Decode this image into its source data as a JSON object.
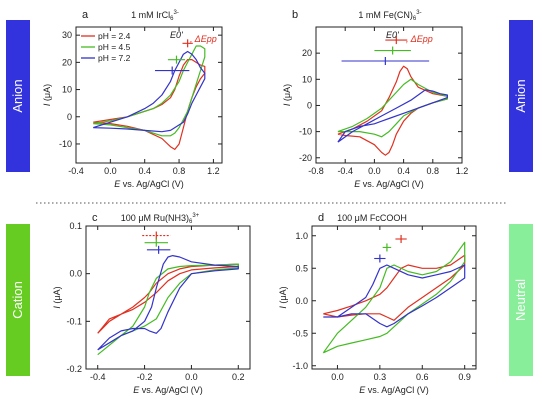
{
  "side_labels": [
    {
      "text": "Anion",
      "color": "#3333dd"
    },
    {
      "text": "Anion",
      "color": "#3333dd"
    },
    {
      "text": "Cation",
      "color": "#66cc22"
    },
    {
      "text": "Neutral",
      "color": "#88ee99"
    }
  ],
  "colors": {
    "pH 2.4": "#e03020",
    "pH 4.5": "#44bb22",
    "pH 7.2": "#3333cc"
  },
  "chart_data": [
    {
      "panel": "a",
      "type": "line",
      "title": "1 mM IrCl6 3-",
      "xlabel": "E vs. Ag/AgCl (V)",
      "ylabel": "I (μA)",
      "xlim": [
        -0.4,
        1.3
      ],
      "ylim": [
        -17,
        33
      ],
      "xticks": [
        "-0.4",
        "0.0",
        "0.4",
        "0.8",
        "1.2"
      ],
      "yticks": [
        "-10",
        "0",
        "10",
        "20",
        "30"
      ],
      "legend": [
        "pH = 2.4",
        "pH = 4.5",
        "pH = 7.2"
      ],
      "legend_title": [
        "E0'",
        "ΔEpp"
      ],
      "series": [
        {
          "name": "pH = 2.4",
          "color": "#e03020",
          "x": [
            -0.2,
            0.0,
            0.2,
            0.4,
            0.5,
            0.6,
            0.7,
            0.75,
            0.8,
            0.85,
            0.9,
            0.95,
            1.0,
            1.05,
            1.1,
            1.1,
            1.05,
            1.0,
            0.95,
            0.9,
            0.85,
            0.8,
            0.75,
            0.7,
            0.6,
            0.4,
            0.2,
            0.0,
            -0.2
          ],
          "y": [
            -2,
            -1,
            0,
            2,
            3,
            4.5,
            7,
            10,
            15,
            19,
            21,
            21,
            20,
            19,
            18.5,
            16,
            14,
            11,
            7,
            2,
            -4,
            -10,
            -12,
            -11,
            -8,
            -5,
            -3.5,
            -2.5,
            -2
          ]
        },
        {
          "name": "pH = 4.5",
          "color": "#44bb22",
          "x": [
            -0.2,
            0.0,
            0.2,
            0.4,
            0.5,
            0.6,
            0.7,
            0.8,
            0.85,
            0.9,
            0.95,
            1.0,
            1.05,
            1.1,
            1.1,
            1.05,
            1.0,
            0.95,
            0.9,
            0.85,
            0.8,
            0.75,
            0.7,
            0.6,
            0.4,
            0.2,
            0.0,
            -0.2
          ],
          "y": [
            -2.5,
            -1.5,
            0,
            2,
            3,
            5,
            8,
            13,
            17,
            20,
            23,
            26,
            26,
            25,
            22,
            17,
            12,
            7,
            2,
            -1,
            -4,
            -6,
            -7,
            -7,
            -5,
            -4,
            -3,
            -2.5
          ]
        },
        {
          "name": "pH = 7.2",
          "color": "#3333cc",
          "x": [
            -0.2,
            0.0,
            0.2,
            0.4,
            0.5,
            0.6,
            0.7,
            0.75,
            0.8,
            0.85,
            0.9,
            0.95,
            1.0,
            1.05,
            1.1,
            1.1,
            1.05,
            1.0,
            0.95,
            0.9,
            0.85,
            0.8,
            0.7,
            0.6,
            0.4,
            0.2,
            0.0,
            -0.2
          ],
          "y": [
            -4,
            -2,
            0,
            3,
            5,
            8,
            13,
            17,
            20,
            23,
            24,
            23,
            21,
            18,
            16,
            14,
            11,
            8,
            5,
            1,
            -2,
            -3,
            -5,
            -5.5,
            -5,
            -4.5,
            -4.2,
            -4
          ]
        }
      ],
      "markers": [
        {
          "color": "#e03020",
          "center": 0.9,
          "half_width": 0.06,
          "y": 27
        },
        {
          "color": "#44bb22",
          "center": 0.77,
          "half_width": 0.1,
          "y": 21
        },
        {
          "color": "#3333cc",
          "center": 0.72,
          "half_width": 0.2,
          "y": 17
        }
      ]
    },
    {
      "panel": "b",
      "type": "line",
      "title": "1 mM Fe(CN)6 3-",
      "xlabel": "E vs. Ag/AgCl (V)",
      "ylabel": "I (μA)",
      "xlim": [
        -0.8,
        1.2
      ],
      "ylim": [
        -22,
        30
      ],
      "xticks": [
        "-0.8",
        "-0.4",
        "0.0",
        "0.4",
        "0.8",
        "1.2"
      ],
      "yticks": [
        "-20",
        "-10",
        "0",
        "10",
        "20"
      ],
      "legend_title": [
        "E0'",
        "ΔEpp"
      ],
      "series": [
        {
          "name": "pH = 2.4",
          "color": "#e03020",
          "x": [
            -0.5,
            -0.3,
            -0.1,
            0.1,
            0.2,
            0.3,
            0.35,
            0.4,
            0.45,
            0.5,
            0.6,
            0.8,
            1.0,
            1.0,
            0.8,
            0.6,
            0.5,
            0.4,
            0.3,
            0.25,
            0.2,
            0.15,
            0.1,
            0.0,
            -0.2,
            -0.4,
            -0.5
          ],
          "y": [
            -11,
            -9,
            -6,
            -2,
            3,
            9,
            13,
            15,
            14,
            11,
            7,
            4.5,
            3.5,
            2.5,
            1,
            -1,
            -3,
            -6,
            -11,
            -15,
            -18,
            -19,
            -18,
            -15,
            -12,
            -11.5,
            -11
          ]
        },
        {
          "name": "pH = 4.5",
          "color": "#44bb22",
          "x": [
            -0.5,
            -0.3,
            -0.1,
            0.1,
            0.2,
            0.3,
            0.4,
            0.5,
            0.6,
            0.8,
            1.0,
            1.0,
            0.8,
            0.6,
            0.4,
            0.3,
            0.2,
            0.1,
            0.0,
            -0.2,
            -0.4,
            -0.5
          ],
          "y": [
            -10,
            -8,
            -5,
            -1,
            2,
            5,
            8,
            10,
            8,
            5,
            3.5,
            2.5,
            1,
            -1,
            -4,
            -7,
            -10,
            -12,
            -11,
            -10,
            -10,
            -10
          ]
        },
        {
          "name": "pH = 7.2",
          "color": "#3333cc",
          "x": [
            -0.5,
            -0.3,
            -0.1,
            0.1,
            0.3,
            0.5,
            0.6,
            0.7,
            0.8,
            0.9,
            1.0,
            1.0,
            0.8,
            0.6,
            0.4,
            0.2,
            0.0,
            -0.2,
            -0.4,
            -0.5
          ],
          "y": [
            -14,
            -10,
            -7,
            -4,
            -1,
            2,
            4,
            6,
            5.5,
            4.5,
            4,
            3,
            1,
            -1,
            -3,
            -5,
            -7,
            -8,
            -10,
            -14
          ]
        }
      ],
      "markers": [
        {
          "color": "#e03020",
          "center": 0.3,
          "half_width": 0.15,
          "y": 25
        },
        {
          "color": "#44bb22",
          "center": 0.25,
          "half_width": 0.25,
          "y": 21
        },
        {
          "color": "#3333cc",
          "center": 0.15,
          "half_width": 0.6,
          "y": 17
        }
      ]
    },
    {
      "panel": "c",
      "type": "line",
      "title": "100 μM Ru(NH3)6 3+",
      "xlabel": "E vs. Ag/AgCl (V)",
      "ylabel": "I (μA)",
      "xlim": [
        -0.45,
        0.25
      ],
      "ylim": [
        -0.2,
        0.1
      ],
      "xticks": [
        "-0.4",
        "-0.2",
        "0.0",
        "0.2"
      ],
      "yticks": [
        "-0.2",
        "-0.1",
        "0.0",
        "0.1"
      ],
      "series": [
        {
          "name": "pH = 2.4",
          "color": "#e03020",
          "x": [
            -0.4,
            -0.35,
            -0.3,
            -0.25,
            -0.2,
            -0.18,
            -0.15,
            -0.1,
            -0.05,
            0.0,
            0.1,
            0.2,
            0.2,
            0.1,
            0.0,
            -0.05,
            -0.1,
            -0.15,
            -0.2,
            -0.25,
            -0.3,
            -0.35,
            -0.4
          ],
          "y": [
            -0.125,
            -0.1,
            -0.085,
            -0.07,
            -0.05,
            -0.04,
            -0.02,
            0.0,
            0.01,
            0.015,
            0.018,
            0.02,
            0.015,
            0.012,
            0.008,
            0.0,
            -0.015,
            -0.04,
            -0.06,
            -0.075,
            -0.085,
            -0.095,
            -0.125
          ]
        },
        {
          "name": "pH = 4.5",
          "color": "#44bb22",
          "x": [
            -0.4,
            -0.35,
            -0.3,
            -0.25,
            -0.2,
            -0.18,
            -0.15,
            -0.1,
            -0.05,
            0.0,
            0.1,
            0.2,
            0.2,
            0.1,
            0.0,
            -0.05,
            -0.1,
            -0.15,
            -0.2,
            -0.25,
            -0.3,
            -0.35,
            -0.4
          ],
          "y": [
            -0.17,
            -0.15,
            -0.13,
            -0.11,
            -0.07,
            -0.04,
            -0.01,
            0.01,
            0.015,
            0.017,
            0.018,
            0.02,
            0.012,
            0.008,
            0.0,
            -0.02,
            -0.05,
            -0.095,
            -0.11,
            -0.12,
            -0.13,
            -0.15,
            -0.17
          ]
        },
        {
          "name": "pH = 7.2",
          "color": "#3333cc",
          "x": [
            -0.4,
            -0.35,
            -0.3,
            -0.25,
            -0.2,
            -0.17,
            -0.15,
            -0.12,
            -0.1,
            -0.08,
            -0.05,
            0.0,
            0.1,
            0.2,
            0.2,
            0.1,
            0.0,
            -0.05,
            -0.1,
            -0.13,
            -0.15,
            -0.18,
            -0.2,
            -0.25,
            -0.3,
            -0.35,
            -0.4
          ],
          "y": [
            -0.16,
            -0.145,
            -0.13,
            -0.12,
            -0.1,
            -0.07,
            -0.03,
            0.02,
            0.035,
            0.038,
            0.035,
            0.025,
            0.018,
            0.015,
            0.01,
            0.006,
            0.0,
            -0.03,
            -0.08,
            -0.115,
            -0.125,
            -0.12,
            -0.115,
            -0.115,
            -0.12,
            -0.135,
            -0.16
          ]
        }
      ],
      "markers": [
        {
          "color": "#e03020",
          "center": -0.15,
          "half_width": 0.06,
          "y": 0.08,
          "dashed": true
        },
        {
          "color": "#44bb22",
          "center": -0.15,
          "half_width": 0.05,
          "y": 0.065
        },
        {
          "color": "#3333cc",
          "center": -0.14,
          "half_width": 0.05,
          "y": 0.05
        }
      ]
    },
    {
      "panel": "d",
      "type": "line",
      "title": "100 μM FcCOOH",
      "xlabel": "E vs. Ag/AgCl (V)",
      "ylabel": "I (μA)",
      "xlim": [
        -0.18,
        0.98
      ],
      "ylim": [
        -1.05,
        1.15
      ],
      "xticks": [
        "0.0",
        "0.3",
        "0.6",
        "0.9"
      ],
      "yticks": [
        "-1.0",
        "-0.5",
        "0.0",
        "0.5",
        "1.0"
      ],
      "series": [
        {
          "name": "pH = 2.4",
          "color": "#e03020",
          "x": [
            -0.1,
            0.0,
            0.1,
            0.2,
            0.3,
            0.35,
            0.4,
            0.45,
            0.5,
            0.6,
            0.7,
            0.8,
            0.9,
            0.9,
            0.8,
            0.7,
            0.6,
            0.5,
            0.45,
            0.4,
            0.35,
            0.3,
            0.2,
            0.1,
            0.0,
            -0.1
          ],
          "y": [
            -0.2,
            -0.15,
            -0.08,
            0.0,
            0.1,
            0.2,
            0.35,
            0.5,
            0.55,
            0.5,
            0.5,
            0.55,
            0.7,
            0.55,
            0.35,
            0.2,
            0.05,
            -0.1,
            -0.2,
            -0.3,
            -0.25,
            -0.2,
            -0.2,
            -0.22,
            -0.25,
            -0.2
          ]
        },
        {
          "name": "pH = 4.5",
          "color": "#44bb22",
          "x": [
            -0.1,
            0.0,
            0.1,
            0.2,
            0.3,
            0.35,
            0.4,
            0.5,
            0.6,
            0.7,
            0.8,
            0.9,
            0.9,
            0.8,
            0.7,
            0.6,
            0.5,
            0.4,
            0.35,
            0.3,
            0.2,
            0.1,
            0.0,
            -0.1
          ],
          "y": [
            -0.8,
            -0.5,
            -0.3,
            -0.1,
            0.2,
            0.5,
            0.55,
            0.45,
            0.4,
            0.45,
            0.6,
            0.9,
            0.6,
            0.3,
            0.1,
            -0.05,
            -0.2,
            -0.4,
            -0.5,
            -0.55,
            -0.6,
            -0.65,
            -0.7,
            -0.8
          ]
        },
        {
          "name": "pH = 7.2",
          "color": "#3333cc",
          "x": [
            -0.1,
            0.0,
            0.1,
            0.2,
            0.25,
            0.3,
            0.35,
            0.4,
            0.5,
            0.6,
            0.7,
            0.8,
            0.9,
            0.9,
            0.8,
            0.7,
            0.6,
            0.5,
            0.4,
            0.35,
            0.3,
            0.2,
            0.1,
            0.0,
            -0.1
          ],
          "y": [
            -0.25,
            -0.25,
            -0.1,
            0.05,
            0.25,
            0.5,
            0.55,
            0.5,
            0.4,
            0.35,
            0.4,
            0.45,
            0.55,
            0.35,
            0.2,
            0.05,
            -0.08,
            -0.2,
            -0.35,
            -0.4,
            -0.35,
            -0.2,
            -0.2,
            -0.25,
            -0.25
          ]
        }
      ],
      "markers": [
        {
          "color": "#e03020",
          "center": 0.45,
          "half_width": 0.04,
          "y": 0.95
        },
        {
          "color": "#44bb22",
          "center": 0.35,
          "half_width": 0.03,
          "y": 0.82
        },
        {
          "color": "#3333cc",
          "center": 0.3,
          "half_width": 0.04,
          "y": 0.65
        }
      ]
    }
  ]
}
